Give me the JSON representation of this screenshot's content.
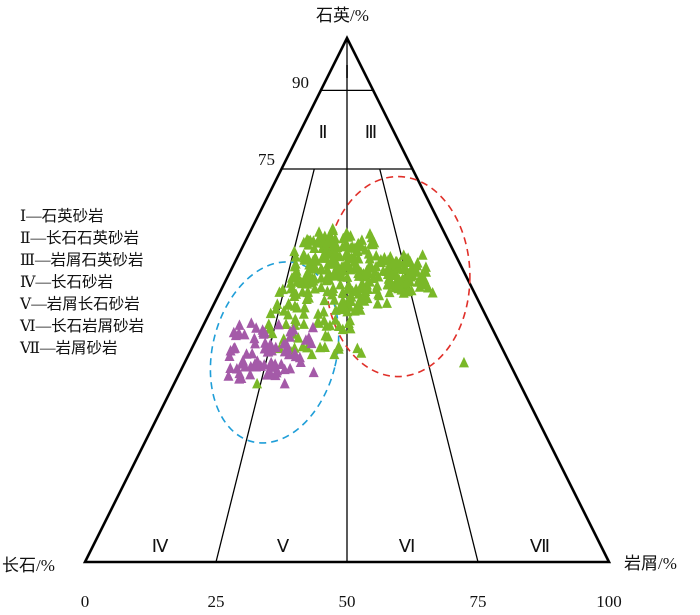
{
  "chart_data": {
    "type": "scatter",
    "subtype": "ternary",
    "axes": {
      "top": "石英/%",
      "left": "长石/%",
      "right": "岩屑/%"
    },
    "bottom_ticks": [
      "0",
      "25",
      "50",
      "75",
      "100"
    ],
    "quartz_ticks": [
      "90",
      "75"
    ],
    "fields": [
      "Ⅰ",
      "Ⅱ",
      "Ⅲ",
      "Ⅳ",
      "Ⅴ",
      "Ⅵ",
      "Ⅶ"
    ],
    "legend": [
      "Ⅰ—石英砂岩",
      "Ⅱ—长石石英砂岩",
      "Ⅲ—岩屑石英砂岩",
      "Ⅳ—长石砂岩",
      "Ⅴ—岩屑长石砂岩",
      "Ⅵ—长石岩屑砂岩",
      "Ⅶ—岩屑砂岩"
    ],
    "colors": {
      "green": "#7ab828",
      "purple": "#a45aa8",
      "blue_ellipse": "#1f9ed8",
      "red_ellipse": "#e0302a",
      "lines": "#000000"
    },
    "clusters": [
      {
        "name": "",
        "color": "#7ab828",
        "n": 220,
        "q": [
          47,
          64
        ],
        "rl": [
          0.22,
          0.68
        ],
        "core": {
          "q": 56,
          "rl": 0.48
        }
      },
      {
        "name": "",
        "color": "#7ab828",
        "n": 90,
        "q": [
          51,
          59
        ],
        "rl": [
          0.62,
          0.86
        ],
        "core": {
          "q": 55,
          "rl": 0.72
        }
      },
      {
        "name": "",
        "color": "#7ab828",
        "n": 60,
        "q": [
          38,
          52
        ],
        "rl": [
          0.18,
          0.58
        ],
        "core": {
          "q": 45,
          "rl": 0.38
        }
      },
      {
        "name": "",
        "color": "#a45aa8",
        "n": 75,
        "q": [
          33,
          46
        ],
        "rl": [
          0.08,
          0.42
        ],
        "core": {
          "q": 40,
          "rl": 0.26
        }
      }
    ],
    "outliers": [
      {
        "q": 38,
        "rl": 0.86,
        "color": "#7ab828"
      },
      {
        "q": 34,
        "rl": 0.24,
        "color": "#7ab828"
      },
      {
        "q": 34,
        "rl": 0.32,
        "color": "#a45aa8"
      }
    ]
  }
}
